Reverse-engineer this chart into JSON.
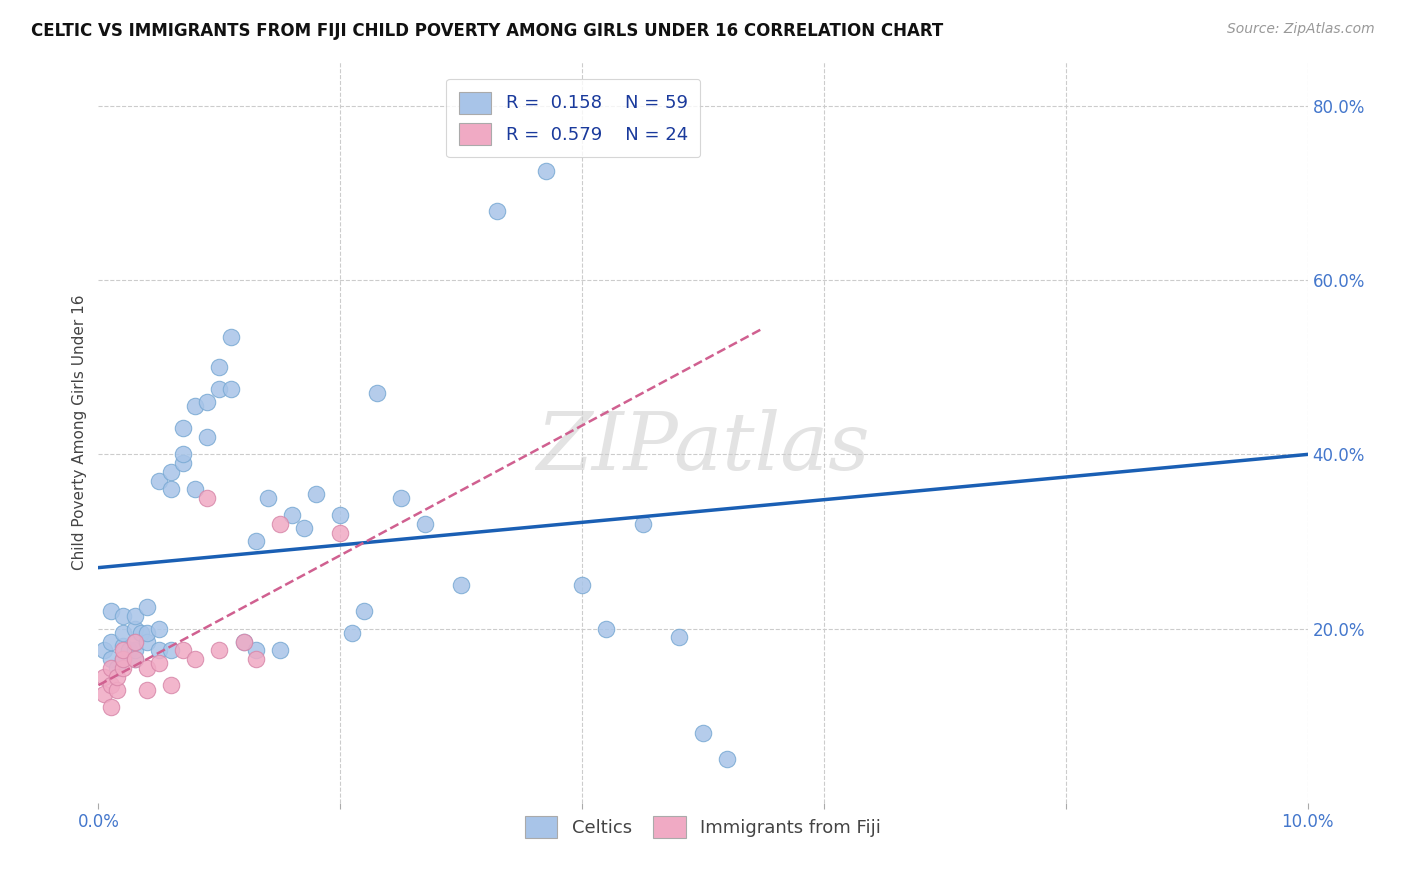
{
  "title": "CELTIC VS IMMIGRANTS FROM FIJI CHILD POVERTY AMONG GIRLS UNDER 16 CORRELATION CHART",
  "source": "Source: ZipAtlas.com",
  "ylabel": "Child Poverty Among Girls Under 16",
  "xlim": [
    0.0,
    0.1
  ],
  "ylim": [
    0.0,
    0.85
  ],
  "celtics_color": "#a8c4e8",
  "celtics_edge_color": "#7aaad4",
  "fiji_color": "#f0aac4",
  "fiji_edge_color": "#d888aa",
  "celtics_line_color": "#1a5fb4",
  "fiji_line_color": "#d06090",
  "grid_color": "#cccccc",
  "background_color": "#ffffff",
  "watermark": "ZIPatlas",
  "celtics_x": [
    0.0005,
    0.001,
    0.001,
    0.001,
    0.0015,
    0.002,
    0.002,
    0.002,
    0.002,
    0.0025,
    0.003,
    0.003,
    0.003,
    0.003,
    0.003,
    0.0035,
    0.004,
    0.004,
    0.004,
    0.005,
    0.005,
    0.005,
    0.006,
    0.006,
    0.006,
    0.007,
    0.007,
    0.007,
    0.008,
    0.008,
    0.009,
    0.009,
    0.01,
    0.01,
    0.011,
    0.011,
    0.012,
    0.013,
    0.013,
    0.014,
    0.015,
    0.016,
    0.017,
    0.018,
    0.02,
    0.021,
    0.022,
    0.023,
    0.025,
    0.027,
    0.03,
    0.033,
    0.037,
    0.04,
    0.042,
    0.045,
    0.048,
    0.05,
    0.052
  ],
  "celtics_y": [
    0.175,
    0.165,
    0.185,
    0.22,
    0.155,
    0.18,
    0.195,
    0.215,
    0.165,
    0.175,
    0.165,
    0.175,
    0.2,
    0.215,
    0.185,
    0.195,
    0.185,
    0.195,
    0.225,
    0.2,
    0.175,
    0.37,
    0.38,
    0.175,
    0.36,
    0.39,
    0.4,
    0.43,
    0.36,
    0.455,
    0.42,
    0.46,
    0.475,
    0.5,
    0.475,
    0.535,
    0.185,
    0.175,
    0.3,
    0.35,
    0.175,
    0.33,
    0.315,
    0.355,
    0.33,
    0.195,
    0.22,
    0.47,
    0.35,
    0.32,
    0.25,
    0.68,
    0.725,
    0.25,
    0.2,
    0.32,
    0.19,
    0.08,
    0.05
  ],
  "fiji_x": [
    0.0005,
    0.0005,
    0.001,
    0.001,
    0.001,
    0.0015,
    0.0015,
    0.002,
    0.002,
    0.002,
    0.003,
    0.003,
    0.004,
    0.004,
    0.005,
    0.006,
    0.007,
    0.008,
    0.009,
    0.01,
    0.012,
    0.013,
    0.015,
    0.02
  ],
  "fiji_y": [
    0.125,
    0.145,
    0.11,
    0.135,
    0.155,
    0.13,
    0.145,
    0.155,
    0.165,
    0.175,
    0.165,
    0.185,
    0.13,
    0.155,
    0.16,
    0.135,
    0.175,
    0.165,
    0.35,
    0.175,
    0.185,
    0.165,
    0.32,
    0.31
  ],
  "celtics_line_x": [
    0.0,
    0.1
  ],
  "celtics_line_y": [
    0.27,
    0.4
  ],
  "fiji_line_x": [
    0.0,
    0.055
  ],
  "fiji_line_y": [
    0.135,
    0.545
  ]
}
